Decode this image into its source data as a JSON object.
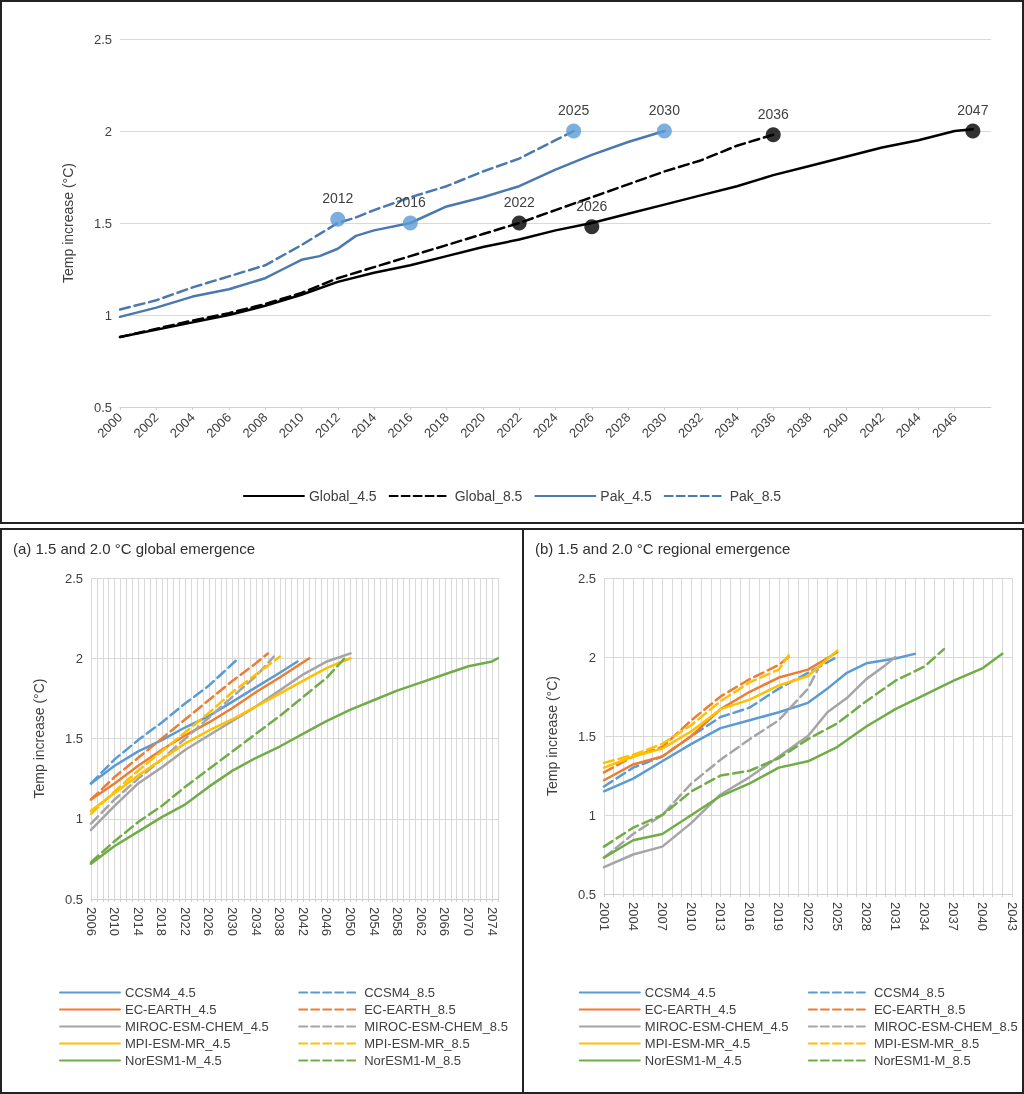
{
  "chart_data": [
    {
      "type": "line",
      "ylabel": "Temp increase (°C)",
      "xlim": [
        2000,
        2048
      ],
      "xticks": [
        2000,
        2002,
        2004,
        2006,
        2008,
        2010,
        2012,
        2014,
        2016,
        2018,
        2020,
        2022,
        2024,
        2026,
        2028,
        2030,
        2032,
        2034,
        2036,
        2038,
        2040,
        2042,
        2044,
        2046
      ],
      "ylim": [
        0.5,
        2.5
      ],
      "yticks": [
        0.5,
        1,
        1.5,
        2,
        2.5
      ],
      "grid": "y",
      "legend": "bottom",
      "marker": "none",
      "series": [
        {
          "name": "Global_4.5",
          "color": "#000000",
          "line_style": "solid",
          "x": [
            2000,
            2004,
            2006,
            2008,
            2010,
            2012,
            2014,
            2016,
            2018,
            2020,
            2022,
            2024,
            2026,
            2028,
            2030,
            2032,
            2034,
            2036,
            2038,
            2040,
            2042,
            2044,
            2046,
            2047
          ],
          "values": [
            0.88,
            0.96,
            1.0,
            1.05,
            1.11,
            1.18,
            1.23,
            1.27,
            1.32,
            1.37,
            1.41,
            1.46,
            1.5,
            1.55,
            1.6,
            1.65,
            1.7,
            1.76,
            1.81,
            1.86,
            1.91,
            1.95,
            2.0,
            2.01
          ]
        },
        {
          "name": "Global_8.5",
          "color": "#000000",
          "line_style": "dashed",
          "x": [
            2000,
            2004,
            2006,
            2008,
            2010,
            2012,
            2014,
            2016,
            2018,
            2020,
            2022,
            2024,
            2026,
            2028,
            2030,
            2032,
            2034,
            2036
          ],
          "values": [
            0.88,
            0.97,
            1.01,
            1.06,
            1.12,
            1.2,
            1.26,
            1.32,
            1.38,
            1.44,
            1.5,
            1.57,
            1.64,
            1.71,
            1.78,
            1.84,
            1.92,
            1.98
          ]
        },
        {
          "name": "Pak_4.5",
          "color": "#4a78b0",
          "line_style": "solid",
          "x": [
            2000,
            2002,
            2004,
            2006,
            2008,
            2009,
            2010,
            2011,
            2012,
            2013,
            2014,
            2016,
            2018,
            2020,
            2022,
            2024,
            2026,
            2028,
            2030
          ],
          "values": [
            0.99,
            1.04,
            1.1,
            1.14,
            1.2,
            1.25,
            1.3,
            1.32,
            1.36,
            1.43,
            1.46,
            1.5,
            1.59,
            1.64,
            1.7,
            1.79,
            1.87,
            1.94,
            2.0
          ]
        },
        {
          "name": "Pak_8.5",
          "color": "#4a78b0",
          "line_style": "dashed",
          "x": [
            2000,
            2002,
            2004,
            2006,
            2008,
            2010,
            2012,
            2013,
            2014,
            2016,
            2018,
            2020,
            2022,
            2024,
            2025
          ],
          "values": [
            1.03,
            1.08,
            1.15,
            1.21,
            1.27,
            1.38,
            1.5,
            1.53,
            1.57,
            1.64,
            1.7,
            1.78,
            1.85,
            1.95,
            2.0
          ]
        },
        {
          "type": "scatter",
          "marker": "circle",
          "color": "#5b9bd5",
          "x": [
            2012,
            2016,
            2025,
            2030
          ],
          "values": [
            1.52,
            1.5,
            2.0,
            2.0
          ]
        },
        {
          "type": "scatter",
          "marker": "circle",
          "color": "#000000",
          "x": [
            2022,
            2026,
            2036,
            2047
          ],
          "values": [
            1.5,
            1.48,
            1.98,
            2.0
          ]
        }
      ],
      "annotations": [
        {
          "text": "2012",
          "x": 2012,
          "y": 1.52
        },
        {
          "text": "2016",
          "x": 2016,
          "y": 1.5
        },
        {
          "text": "2025",
          "x": 2025,
          "y": 2.0
        },
        {
          "text": "2030",
          "x": 2030,
          "y": 2.0
        },
        {
          "text": "2022",
          "x": 2022,
          "y": 1.5
        },
        {
          "text": "2026",
          "x": 2026,
          "y": 1.48
        },
        {
          "text": "2036",
          "x": 2036,
          "y": 1.98
        },
        {
          "text": "2047",
          "x": 2047,
          "y": 2.0
        }
      ]
    },
    {
      "type": "line",
      "title": "(a) 1.5 and 2.0 °C global emergence",
      "ylabel": "Temp increase (°C)",
      "xlim": [
        2006,
        2075
      ],
      "xticks": [
        2006,
        {
          "value": 2007,
          "label": null
        },
        {
          "value": 2008,
          "label": null
        },
        {
          "value": 2009,
          "label": null
        },
        2010,
        {
          "value": 2011,
          "label": null
        },
        {
          "value": 2012,
          "label": null
        },
        {
          "value": 2013,
          "label": null
        },
        2014,
        {
          "value": 2015,
          "label": null
        },
        {
          "value": 2016,
          "label": null
        },
        {
          "value": 2017,
          "label": null
        },
        2018,
        {
          "value": 2019,
          "label": null
        },
        {
          "value": 2020,
          "label": null
        },
        {
          "value": 2021,
          "label": null
        },
        2022,
        {
          "value": 2023,
          "label": null
        },
        {
          "value": 2024,
          "label": null
        },
        {
          "value": 2025,
          "label": null
        },
        2026,
        {
          "value": 2027,
          "label": null
        },
        {
          "value": 2028,
          "label": null
        },
        {
          "value": 2029,
          "label": null
        },
        2030,
        {
          "value": 2031,
          "label": null
        },
        {
          "value": 2032,
          "label": null
        },
        {
          "value": 2033,
          "label": null
        },
        2034,
        {
          "value": 2035,
          "label": null
        },
        {
          "value": 2036,
          "label": null
        },
        {
          "value": 2037,
          "label": null
        },
        2038,
        {
          "value": 2039,
          "label": null
        },
        {
          "value": 2040,
          "label": null
        },
        {
          "value": 2041,
          "label": null
        },
        2042,
        {
          "value": 2043,
          "label": null
        },
        {
          "value": 2044,
          "label": null
        },
        {
          "value": 2045,
          "label": null
        },
        2046,
        {
          "value": 2047,
          "label": null
        },
        {
          "value": 2048,
          "label": null
        },
        {
          "value": 2049,
          "label": null
        },
        2050,
        {
          "value": 2051,
          "label": null
        },
        {
          "value": 2052,
          "label": null
        },
        {
          "value": 2053,
          "label": null
        },
        2054,
        {
          "value": 2055,
          "label": null
        },
        {
          "value": 2056,
          "label": null
        },
        {
          "value": 2057,
          "label": null
        },
        2058,
        {
          "value": 2059,
          "label": null
        },
        {
          "value": 2060,
          "label": null
        },
        {
          "value": 2061,
          "label": null
        },
        2062,
        {
          "value": 2063,
          "label": null
        },
        {
          "value": 2064,
          "label": null
        },
        {
          "value": 2065,
          "label": null
        },
        2066,
        {
          "value": 2067,
          "label": null
        },
        {
          "value": 2068,
          "label": null
        },
        {
          "value": 2069,
          "label": null
        },
        2070,
        {
          "value": 2071,
          "label": null
        },
        {
          "value": 2072,
          "label": null
        },
        {
          "value": 2073,
          "label": null
        },
        2074,
        {
          "value": 2075,
          "label": null
        }
      ],
      "ylim": [
        0.5,
        2.5
      ],
      "yticks": [
        0.5,
        1,
        1.5,
        2,
        2.5
      ],
      "grid": true,
      "legend": "bottom",
      "marker": "none",
      "series": [
        {
          "name": "CCSM4_4.5",
          "color": "#5b9bd5",
          "line_style": "solid",
          "x": [
            2006,
            2010,
            2014,
            2018,
            2022,
            2026,
            2030,
            2034,
            2038,
            2041
          ],
          "values": [
            1.22,
            1.33,
            1.42,
            1.49,
            1.57,
            1.64,
            1.73,
            1.82,
            1.91,
            1.98
          ]
        },
        {
          "name": "CCSM4_8.5",
          "color": "#5b9bd5",
          "line_style": "dashed",
          "x": [
            2006,
            2010,
            2014,
            2018,
            2022,
            2026,
            2031
          ],
          "values": [
            1.22,
            1.37,
            1.49,
            1.6,
            1.72,
            1.83,
            2.0
          ]
        },
        {
          "name": "EC-EARTH_4.5",
          "color": "#ed7d31",
          "line_style": "solid",
          "x": [
            2006,
            2010,
            2014,
            2018,
            2022,
            2026,
            2030,
            2034,
            2038,
            2043
          ],
          "values": [
            1.12,
            1.22,
            1.33,
            1.43,
            1.52,
            1.6,
            1.69,
            1.79,
            1.88,
            2.0
          ]
        },
        {
          "name": "EC-EARTH_8.5",
          "color": "#ed7d31",
          "line_style": "dashed",
          "x": [
            2006,
            2010,
            2014,
            2018,
            2022,
            2026,
            2030,
            2034,
            2036
          ],
          "values": [
            1.12,
            1.26,
            1.38,
            1.5,
            1.62,
            1.74,
            1.86,
            1.97,
            2.03
          ]
        },
        {
          "name": "MIROC-ESM-CHEM_4.5",
          "color": "#a5a5a5",
          "line_style": "solid",
          "x": [
            2006,
            2010,
            2014,
            2018,
            2022,
            2026,
            2030,
            2034,
            2038,
            2042,
            2046,
            2050
          ],
          "values": [
            0.93,
            1.08,
            1.22,
            1.32,
            1.43,
            1.52,
            1.61,
            1.7,
            1.8,
            1.9,
            1.98,
            2.03
          ]
        },
        {
          "name": "MIROC-ESM-CHEM_8.5",
          "color": "#a5a5a5",
          "line_style": "dashed",
          "x": [
            2006,
            2010,
            2014,
            2018,
            2022,
            2026,
            2030,
            2034,
            2037
          ],
          "values": [
            0.97,
            1.12,
            1.25,
            1.37,
            1.5,
            1.63,
            1.76,
            1.89,
            2.01
          ]
        },
        {
          "name": "MPI-ESM-MR_4.5",
          "color": "#ffc000",
          "line_style": "solid",
          "x": [
            2006,
            2010,
            2014,
            2018,
            2022,
            2026,
            2030,
            2034,
            2038,
            2042,
            2046,
            2050
          ],
          "values": [
            1.05,
            1.16,
            1.27,
            1.37,
            1.47,
            1.55,
            1.62,
            1.7,
            1.78,
            1.86,
            1.94,
            2.0
          ]
        },
        {
          "name": "MPI-ESM-MR_8.5",
          "color": "#ffc000",
          "line_style": "dashed",
          "x": [
            2006,
            2010,
            2014,
            2018,
            2022,
            2026,
            2030,
            2034,
            2038
          ],
          "values": [
            1.03,
            1.17,
            1.3,
            1.42,
            1.54,
            1.66,
            1.79,
            1.9,
            2.01
          ]
        },
        {
          "name": "NorESM1-M_4.5",
          "color": "#70ad47",
          "line_style": "solid",
          "x": [
            2006,
            2010,
            2014,
            2018,
            2022,
            2026,
            2030,
            2034,
            2038,
            2042,
            2046,
            2050,
            2054,
            2058,
            2062,
            2066,
            2070,
            2074,
            2075
          ],
          "values": [
            0.72,
            0.83,
            0.92,
            1.01,
            1.09,
            1.2,
            1.3,
            1.38,
            1.45,
            1.53,
            1.61,
            1.68,
            1.74,
            1.8,
            1.85,
            1.9,
            1.95,
            1.98,
            2.0
          ]
        },
        {
          "name": "NorESM1-M_8.5",
          "color": "#70ad47",
          "line_style": "dashed",
          "x": [
            2006,
            2010,
            2014,
            2018,
            2022,
            2026,
            2030,
            2034,
            2038,
            2042,
            2046,
            2049
          ],
          "values": [
            0.73,
            0.86,
            0.98,
            1.08,
            1.2,
            1.31,
            1.42,
            1.53,
            1.64,
            1.76,
            1.88,
            2.0
          ]
        }
      ]
    },
    {
      "type": "line",
      "title": "(b) 1.5 and 2.0 °C regional emergence",
      "ylabel": "Temp increase (°C)",
      "xlim": [
        2001,
        2043
      ],
      "xticks": [
        2001,
        {
          "value": 2002,
          "label": null
        },
        {
          "value": 2003,
          "label": null
        },
        2004,
        {
          "value": 2005,
          "label": null
        },
        {
          "value": 2006,
          "label": null
        },
        2007,
        {
          "value": 2008,
          "label": null
        },
        {
          "value": 2009,
          "label": null
        },
        2010,
        {
          "value": 2011,
          "label": null
        },
        {
          "value": 2012,
          "label": null
        },
        2013,
        {
          "value": 2014,
          "label": null
        },
        {
          "value": 2015,
          "label": null
        },
        2016,
        {
          "value": 2017,
          "label": null
        },
        {
          "value": 2018,
          "label": null
        },
        2019,
        {
          "value": 2020,
          "label": null
        },
        {
          "value": 2021,
          "label": null
        },
        2022,
        {
          "value": 2023,
          "label": null
        },
        {
          "value": 2024,
          "label": null
        },
        2025,
        {
          "value": 2026,
          "label": null
        },
        {
          "value": 2027,
          "label": null
        },
        2028,
        {
          "value": 2029,
          "label": null
        },
        {
          "value": 2030,
          "label": null
        },
        2031,
        {
          "value": 2032,
          "label": null
        },
        {
          "value": 2033,
          "label": null
        },
        2034,
        {
          "value": 2035,
          "label": null
        },
        {
          "value": 2036,
          "label": null
        },
        2037,
        {
          "value": 2038,
          "label": null
        },
        {
          "value": 2039,
          "label": null
        },
        2040,
        {
          "value": 2041,
          "label": null
        },
        {
          "value": 2042,
          "label": null
        },
        2043
      ],
      "ylim": [
        0.5,
        2.5
      ],
      "yticks": [
        0.5,
        1,
        1.5,
        2,
        2.5
      ],
      "grid": true,
      "legend": "bottom",
      "marker": "none",
      "series": [
        {
          "name": "CCSM4_4.5",
          "color": "#5b9bd5",
          "line_style": "solid",
          "x": [
            2001,
            2004,
            2007,
            2010,
            2013,
            2016,
            2019,
            2022,
            2024,
            2026,
            2028,
            2031,
            2033
          ],
          "values": [
            1.15,
            1.23,
            1.34,
            1.45,
            1.55,
            1.6,
            1.65,
            1.71,
            1.8,
            1.9,
            1.96,
            1.99,
            2.02
          ]
        },
        {
          "name": "CCSM4_8.5",
          "color": "#5b9bd5",
          "line_style": "dashed",
          "x": [
            2001,
            2004,
            2007,
            2010,
            2013,
            2016,
            2019,
            2022,
            2025
          ],
          "values": [
            1.18,
            1.3,
            1.37,
            1.5,
            1.62,
            1.68,
            1.8,
            1.9,
            2.0
          ]
        },
        {
          "name": "EC-EARTH_4.5",
          "color": "#ed7d31",
          "line_style": "solid",
          "x": [
            2001,
            2004,
            2007,
            2010,
            2013,
            2016,
            2019,
            2022,
            2025
          ],
          "values": [
            1.22,
            1.32,
            1.37,
            1.5,
            1.67,
            1.78,
            1.87,
            1.92,
            2.03
          ]
        },
        {
          "name": "EC-EARTH_8.5",
          "color": "#ed7d31",
          "line_style": "dashed",
          "x": [
            2001,
            2004,
            2007,
            2010,
            2013,
            2016,
            2019,
            2020
          ],
          "values": [
            1.27,
            1.37,
            1.43,
            1.6,
            1.75,
            1.86,
            1.95,
            2.0
          ]
        },
        {
          "name": "MIROC-ESM-CHEM_4.5",
          "color": "#a5a5a5",
          "line_style": "solid",
          "x": [
            2001,
            2004,
            2007,
            2010,
            2013,
            2016,
            2019,
            2022,
            2024,
            2026,
            2028,
            2030,
            2031
          ],
          "values": [
            0.67,
            0.75,
            0.8,
            0.95,
            1.13,
            1.24,
            1.37,
            1.5,
            1.65,
            1.74,
            1.86,
            1.95,
            2.0
          ]
        },
        {
          "name": "MIROC-ESM-CHEM_8.5",
          "color": "#a5a5a5",
          "line_style": "dashed",
          "x": [
            2001,
            2004,
            2007,
            2010,
            2013,
            2016,
            2019,
            2022,
            2023
          ],
          "values": [
            0.73,
            0.88,
            1.0,
            1.2,
            1.35,
            1.48,
            1.6,
            1.8,
            1.92
          ]
        },
        {
          "name": "MPI-ESM-MR_4.5",
          "color": "#ffc000",
          "line_style": "solid",
          "x": [
            2001,
            2004,
            2007,
            2010,
            2013,
            2016,
            2019,
            2022,
            2025
          ],
          "values": [
            1.3,
            1.37,
            1.42,
            1.53,
            1.67,
            1.73,
            1.82,
            1.88,
            2.04
          ]
        },
        {
          "name": "MPI-ESM-MR_8.5",
          "color": "#ffc000",
          "line_style": "dashed",
          "x": [
            2001,
            2004,
            2007,
            2010,
            2013,
            2016,
            2019,
            2020
          ],
          "values": [
            1.33,
            1.38,
            1.45,
            1.57,
            1.72,
            1.84,
            1.92,
            2.01
          ]
        },
        {
          "name": "NorESM1-M_4.5",
          "color": "#70ad47",
          "line_style": "solid",
          "x": [
            2001,
            2004,
            2007,
            2010,
            2013,
            2016,
            2019,
            2022,
            2025,
            2028,
            2031,
            2034,
            2037,
            2040,
            2042
          ],
          "values": [
            0.73,
            0.84,
            0.88,
            1.0,
            1.12,
            1.2,
            1.3,
            1.34,
            1.43,
            1.56,
            1.67,
            1.76,
            1.85,
            1.93,
            2.02
          ]
        },
        {
          "name": "NorESM1-M_8.5",
          "color": "#70ad47",
          "line_style": "dashed",
          "x": [
            2001,
            2004,
            2007,
            2010,
            2013,
            2016,
            2019,
            2022,
            2025,
            2028,
            2031,
            2034,
            2036
          ],
          "values": [
            0.8,
            0.92,
            1.0,
            1.15,
            1.25,
            1.28,
            1.36,
            1.48,
            1.58,
            1.72,
            1.85,
            1.94,
            2.05
          ]
        }
      ]
    }
  ]
}
